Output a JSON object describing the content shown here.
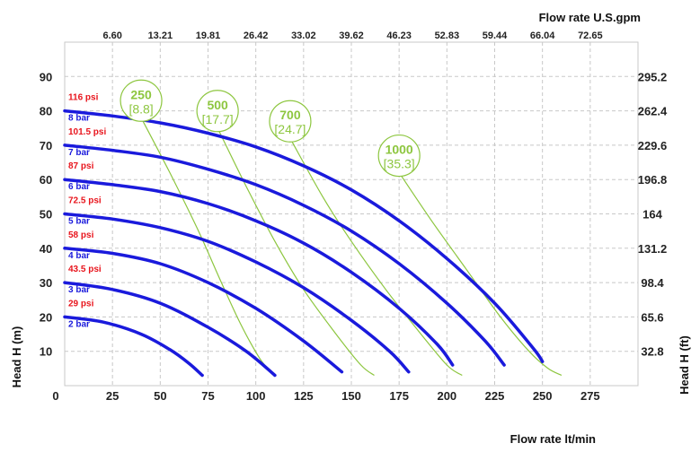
{
  "chart_data": {
    "type": "line",
    "axes": {
      "x_bottom": {
        "label": "Flow rate lt/min",
        "ticks": [
          "0",
          "25",
          "50",
          "75",
          "100",
          "125",
          "150",
          "175",
          "200",
          "225",
          "250",
          "275"
        ],
        "range": [
          0,
          300
        ]
      },
      "x_top": {
        "label": "Flow rate U.S.gpm",
        "ticks": [
          "6.60",
          "13.21",
          "19.81",
          "26.42",
          "33.02",
          "39.62",
          "46.23",
          "52.83",
          "59.44",
          "66.04",
          "72.65"
        ]
      },
      "y_left": {
        "label": "Head H (m)",
        "ticks": [
          "10",
          "20",
          "30",
          "40",
          "50",
          "60",
          "70",
          "80",
          "90"
        ],
        "range": [
          0,
          100
        ]
      },
      "y_right": {
        "label": "Head H (ft)",
        "ticks": [
          "32.8",
          "65.6",
          "98.4",
          "131.2",
          "164",
          "196.8",
          "229.6",
          "262.4",
          "295.2"
        ]
      }
    },
    "grid": true,
    "colors": {
      "pressure_curve": "#1a1adc",
      "speed_curve": "#8dc63f",
      "psi_label": "#e8141c",
      "bar_label": "#1a1adc",
      "grid": "#c8c8c8"
    },
    "series": [
      {
        "name": "2 bar",
        "psi": "29 psi",
        "bar": "2 bar",
        "points": [
          [
            0,
            20
          ],
          [
            20,
            18.5
          ],
          [
            40,
            15
          ],
          [
            55,
            10.5
          ],
          [
            65,
            6.5
          ],
          [
            72,
            3
          ]
        ]
      },
      {
        "name": "3 bar",
        "psi": "43.5 psi",
        "bar": "3 bar",
        "points": [
          [
            0,
            30
          ],
          [
            25,
            28
          ],
          [
            50,
            24
          ],
          [
            75,
            17
          ],
          [
            95,
            10
          ],
          [
            110,
            3
          ]
        ]
      },
      {
        "name": "4 bar",
        "psi": "58 psi",
        "bar": "4 bar",
        "points": [
          [
            0,
            40
          ],
          [
            25,
            38.5
          ],
          [
            50,
            35.5
          ],
          [
            75,
            30
          ],
          [
            100,
            22.5
          ],
          [
            125,
            13
          ],
          [
            145,
            4
          ]
        ]
      },
      {
        "name": "5 bar",
        "psi": "72.5 psi",
        "bar": "5 bar",
        "points": [
          [
            0,
            50
          ],
          [
            25,
            48.5
          ],
          [
            50,
            46
          ],
          [
            75,
            42
          ],
          [
            100,
            36
          ],
          [
            125,
            28.5
          ],
          [
            150,
            19
          ],
          [
            170,
            10
          ],
          [
            180,
            4
          ]
        ]
      },
      {
        "name": "6 bar",
        "psi": "87 psi",
        "bar": "6 bar",
        "points": [
          [
            0,
            60
          ],
          [
            25,
            58.5
          ],
          [
            50,
            56.5
          ],
          [
            75,
            53
          ],
          [
            100,
            48
          ],
          [
            125,
            41.5
          ],
          [
            150,
            33
          ],
          [
            175,
            22.5
          ],
          [
            195,
            12
          ],
          [
            203,
            6
          ]
        ]
      },
      {
        "name": "7 bar",
        "psi": "101.5 psi",
        "bar": "7 bar",
        "points": [
          [
            0,
            70
          ],
          [
            25,
            68.5
          ],
          [
            50,
            66.5
          ],
          [
            75,
            63
          ],
          [
            100,
            58.5
          ],
          [
            125,
            52.5
          ],
          [
            150,
            45
          ],
          [
            175,
            35.5
          ],
          [
            200,
            24
          ],
          [
            220,
            13
          ],
          [
            230,
            6
          ]
        ]
      },
      {
        "name": "8 bar",
        "psi": "116 psi",
        "bar": "8 bar",
        "points": [
          [
            0,
            80
          ],
          [
            25,
            78.5
          ],
          [
            50,
            76.5
          ],
          [
            75,
            73.5
          ],
          [
            100,
            69.5
          ],
          [
            125,
            64
          ],
          [
            150,
            57
          ],
          [
            175,
            48
          ],
          [
            200,
            37
          ],
          [
            225,
            24
          ],
          [
            245,
            11
          ],
          [
            250,
            7
          ]
        ]
      }
    ],
    "speed_curves": [
      {
        "label": "250",
        "sub": "[8.8]",
        "points": [
          [
            40,
            78
          ],
          [
            55,
            62
          ],
          [
            70,
            45
          ],
          [
            82,
            30
          ],
          [
            92,
            18
          ],
          [
            102,
            8
          ],
          [
            108,
            4
          ]
        ]
      },
      {
        "label": "500",
        "sub": "[17.7]",
        "points": [
          [
            80,
            75
          ],
          [
            95,
            58
          ],
          [
            110,
            42
          ],
          [
            125,
            28
          ],
          [
            142,
            15
          ],
          [
            155,
            6
          ],
          [
            162,
            3
          ]
        ]
      },
      {
        "label": "700",
        "sub": "[24.7]",
        "points": [
          [
            118,
            72
          ],
          [
            135,
            55
          ],
          [
            150,
            42
          ],
          [
            168,
            28
          ],
          [
            185,
            16
          ],
          [
            200,
            6
          ],
          [
            208,
            3
          ]
        ]
      },
      {
        "label": "1000",
        "sub": "[35.3]",
        "points": [
          [
            175,
            62
          ],
          [
            192,
            48
          ],
          [
            210,
            34
          ],
          [
            228,
            20
          ],
          [
            243,
            10
          ],
          [
            253,
            5
          ],
          [
            260,
            3
          ]
        ]
      }
    ]
  }
}
